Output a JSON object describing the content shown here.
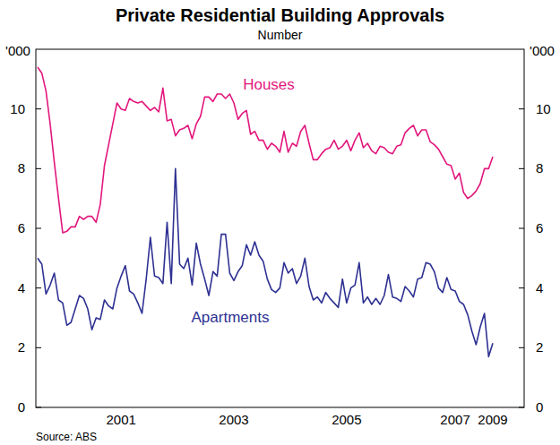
{
  "chart_data": {
    "type": "line",
    "title": "Private Residential Building Approvals",
    "subtitle": "Number",
    "y_label": "'000",
    "source": "Source: ABS",
    "categories": [
      null,
      null,
      null,
      null,
      null,
      null,
      null,
      null,
      null,
      null,
      null,
      null,
      null,
      null,
      null,
      null,
      null,
      null,
      null,
      null,
      "2001",
      null,
      null,
      null,
      null,
      null,
      null,
      null,
      null,
      null,
      null,
      null,
      null,
      null,
      null,
      null,
      null,
      null,
      null,
      null,
      null,
      null,
      null,
      null,
      null,
      null,
      null,
      "2003",
      null,
      null,
      null,
      null,
      null,
      null,
      null,
      null,
      null,
      null,
      null,
      null,
      null,
      null,
      null,
      null,
      null,
      null,
      null,
      null,
      null,
      null,
      null,
      null,
      null,
      null,
      "2005",
      null,
      null,
      null,
      null,
      null,
      null,
      null,
      null,
      null,
      null,
      null,
      null,
      null,
      null,
      null,
      null,
      null,
      null,
      null,
      null,
      null,
      null,
      null,
      null,
      null,
      "2007",
      null,
      null,
      null,
      null,
      null,
      null,
      null,
      null,
      "2009"
    ],
    "series": [
      {
        "name": "Houses",
        "color": "#e2177d",
        "values": [
          11.4,
          11.2,
          10.6,
          9.5,
          8.2,
          7.0,
          5.85,
          5.9,
          6.05,
          6.05,
          6.4,
          6.3,
          6.4,
          6.4,
          6.2,
          6.8,
          8.1,
          8.8,
          9.5,
          10.2,
          10.0,
          9.95,
          10.35,
          10.25,
          10.2,
          10.25,
          10.1,
          9.95,
          10.05,
          9.9,
          10.7,
          9.6,
          9.65,
          9.1,
          9.3,
          9.35,
          9.45,
          9.0,
          9.5,
          9.75,
          10.4,
          10.4,
          10.25,
          10.5,
          10.5,
          10.35,
          10.5,
          10.2,
          9.65,
          9.85,
          9.95,
          9.15,
          9.25,
          8.95,
          8.95,
          8.65,
          8.85,
          8.75,
          8.55,
          9.25,
          8.55,
          8.85,
          8.75,
          9.25,
          9.45,
          8.85,
          8.3,
          8.3,
          8.5,
          8.65,
          8.7,
          8.95,
          8.65,
          8.75,
          8.95,
          8.6,
          8.95,
          9.2,
          8.7,
          8.85,
          8.6,
          8.5,
          8.75,
          8.7,
          8.55,
          8.5,
          8.75,
          8.8,
          9.2,
          9.35,
          9.45,
          9.1,
          9.3,
          9.3,
          8.9,
          8.8,
          8.65,
          8.4,
          8.15,
          8.1,
          7.65,
          7.85,
          7.2,
          7.0,
          7.1,
          7.25,
          7.5,
          8.0,
          8.0,
          8.4
        ]
      },
      {
        "name": "Apartments",
        "color": "#2e3192",
        "values": [
          5.0,
          4.8,
          3.8,
          4.1,
          4.5,
          3.6,
          3.5,
          2.75,
          2.85,
          3.3,
          3.75,
          3.65,
          3.3,
          2.6,
          3.0,
          2.95,
          3.6,
          3.4,
          3.3,
          4.0,
          4.4,
          4.75,
          3.9,
          3.8,
          3.5,
          3.15,
          4.3,
          5.7,
          4.4,
          4.35,
          4.15,
          6.2,
          4.15,
          8.0,
          4.8,
          4.65,
          5.0,
          4.1,
          5.5,
          4.8,
          4.3,
          3.75,
          4.55,
          4.4,
          5.8,
          5.8,
          4.5,
          4.25,
          4.55,
          4.75,
          5.45,
          5.1,
          5.55,
          5.1,
          4.9,
          4.3,
          3.95,
          3.85,
          4.0,
          4.85,
          4.5,
          4.65,
          4.15,
          4.4,
          5.0,
          4.05,
          3.6,
          3.7,
          3.5,
          3.85,
          3.65,
          3.5,
          3.35,
          4.3,
          3.5,
          4.0,
          4.1,
          4.85,
          3.5,
          3.7,
          3.45,
          3.65,
          3.45,
          3.75,
          4.45,
          3.7,
          3.65,
          3.55,
          4.05,
          3.9,
          3.7,
          4.3,
          4.35,
          4.85,
          4.8,
          4.55,
          4.0,
          3.85,
          4.35,
          3.95,
          3.9,
          3.55,
          3.45,
          3.1,
          2.55,
          2.1,
          2.7,
          3.15,
          1.7,
          2.15
        ]
      }
    ],
    "ylim": [
      0,
      12
    ],
    "yticks": [
      0,
      2,
      4,
      6,
      8,
      10
    ],
    "grid": false
  }
}
